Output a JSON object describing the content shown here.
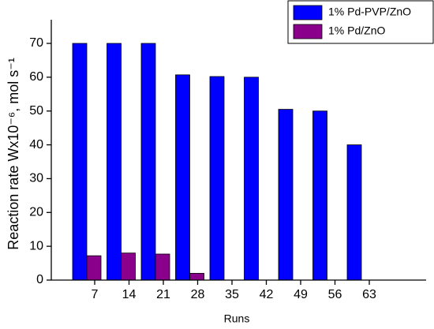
{
  "chart_data": {
    "type": "bar",
    "x_label": "Runs",
    "y_label": "Reaction rate Wx10⁻⁶, mol s⁻¹",
    "categories": [
      "7",
      "14",
      "21",
      "28",
      "35",
      "42",
      "49",
      "56",
      "63"
    ],
    "series": [
      {
        "name": "1% Pd-PVP/ZnO",
        "color": "#0000ff",
        "values": [
          70,
          70,
          70,
          60.7,
          60.2,
          60,
          50.5,
          50,
          40
        ]
      },
      {
        "name": "1% Pd/ZnO",
        "color": "#8b008b",
        "values": [
          7.2,
          8,
          7.7,
          2,
          null,
          null,
          null,
          null,
          null
        ]
      }
    ],
    "ylim": [
      0,
      77
    ],
    "yticks": [
      0,
      10,
      20,
      30,
      40,
      50,
      60,
      70
    ]
  }
}
